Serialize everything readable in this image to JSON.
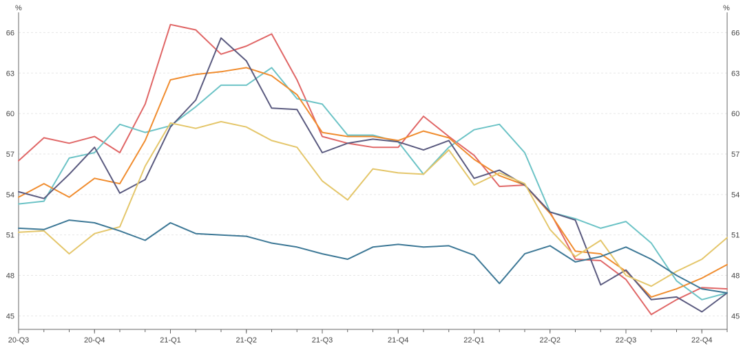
{
  "chart_data": {
    "type": "line",
    "y_unit_left": "%",
    "y_unit_right": "%",
    "ylim": [
      44,
      67.5
    ],
    "y_ticks": [
      45,
      48,
      51,
      54,
      57,
      60,
      63,
      66
    ],
    "x_ticks": [
      {
        "label": "20-Q3",
        "t": 0
      },
      {
        "label": "20-Q4",
        "t": 3
      },
      {
        "label": "21-Q1",
        "t": 6
      },
      {
        "label": "21-Q2",
        "t": 9
      },
      {
        "label": "21-Q3",
        "t": 12
      },
      {
        "label": "21-Q4",
        "t": 15
      },
      {
        "label": "22-Q1",
        "t": 18
      },
      {
        "label": "22-Q2",
        "t": 21
      },
      {
        "label": "22-Q3",
        "t": 24
      },
      {
        "label": "22-Q4",
        "t": 27
      }
    ],
    "x": [
      0,
      1,
      2,
      3,
      4,
      5,
      6,
      7,
      8,
      9,
      10,
      11,
      12,
      13,
      14,
      15,
      16,
      17,
      18,
      19,
      20,
      21,
      22,
      23,
      24,
      25,
      26,
      27,
      28
    ],
    "grid": true,
    "legend": "none",
    "series": [
      {
        "color": "#e06666",
        "values": [
          56.5,
          58.2,
          57.8,
          58.3,
          57.1,
          60.7,
          66.6,
          66.2,
          64.4,
          65.0,
          65.9,
          62.5,
          58.3,
          57.8,
          57.5,
          57.5,
          59.8,
          58.3,
          56.9,
          54.6,
          54.7,
          52.7,
          49.2,
          49.1,
          47.7,
          45.1,
          46.2,
          47.1,
          47.0
        ]
      },
      {
        "color": "#6cc3c6",
        "values": [
          53.3,
          53.5,
          56.7,
          57.1,
          59.2,
          58.6,
          59.1,
          60.5,
          62.1,
          62.1,
          63.4,
          61.1,
          60.7,
          58.4,
          58.4,
          57.9,
          55.5,
          57.5,
          58.8,
          59.2,
          57.1,
          52.7,
          52.2,
          51.5,
          52.0,
          50.4,
          47.6,
          46.2,
          46.7
        ]
      },
      {
        "color": "#f08c2e",
        "values": [
          53.8,
          54.8,
          53.8,
          55.2,
          54.8,
          58.0,
          62.5,
          62.9,
          63.1,
          63.4,
          62.8,
          61.4,
          58.6,
          58.3,
          58.3,
          58.0,
          58.7,
          58.2,
          56.6,
          55.4,
          54.7,
          52.6,
          49.8,
          49.6,
          48.3,
          46.4,
          47.0,
          47.8,
          48.8
        ]
      },
      {
        "color": "#5a5a7f",
        "values": [
          54.2,
          53.7,
          55.5,
          57.5,
          54.1,
          55.1,
          59.0,
          61.0,
          65.6,
          63.9,
          60.4,
          60.3,
          57.1,
          57.8,
          58.1,
          57.9,
          57.3,
          58.0,
          55.2,
          55.8,
          54.7,
          52.7,
          52.1,
          47.3,
          48.4,
          46.2,
          46.4,
          45.3,
          46.7
        ]
      },
      {
        "color": "#e4c66a",
        "values": [
          51.2,
          51.3,
          49.6,
          51.1,
          51.6,
          56.1,
          59.3,
          58.9,
          59.4,
          59.0,
          58.0,
          57.5,
          55.0,
          53.6,
          55.9,
          55.6,
          55.5,
          57.3,
          54.7,
          55.6,
          54.8,
          51.4,
          49.4,
          50.6,
          48.0,
          47.2,
          48.3,
          49.2,
          50.8
        ]
      },
      {
        "color": "#3d7896",
        "values": [
          51.5,
          51.4,
          52.1,
          51.9,
          51.3,
          50.6,
          51.9,
          51.1,
          51.0,
          50.9,
          50.4,
          50.1,
          49.6,
          49.2,
          50.1,
          50.3,
          50.1,
          50.2,
          49.5,
          47.4,
          49.6,
          50.2,
          49.0,
          49.4,
          50.1,
          49.2,
          48.0,
          47.0,
          46.7
        ]
      }
    ]
  }
}
